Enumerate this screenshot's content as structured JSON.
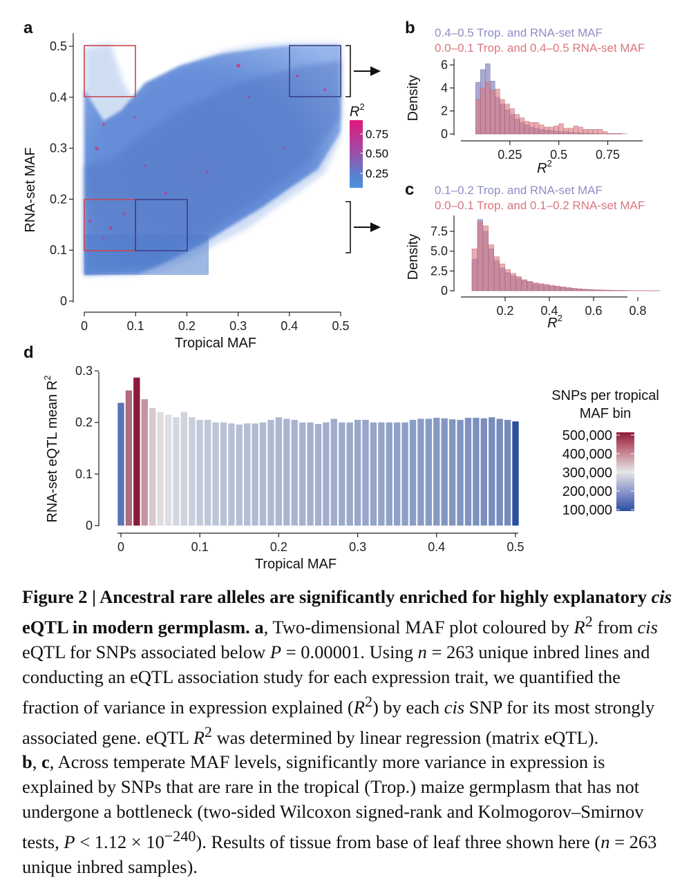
{
  "panel_a": {
    "letter": "a",
    "xlabel": "Tropical MAF",
    "ylabel": "RNA-set MAF",
    "xticks": [
      "0",
      "0.1",
      "0.2",
      "0.3",
      "0.4",
      "0.5"
    ],
    "yticks": [
      "0",
      "0.1",
      "0.2",
      "0.3",
      "0.4",
      "0.5"
    ],
    "colorbar_title": "R",
    "colorbar_title_sup": "2",
    "colorbar_ticks": [
      "0.75",
      "0.50",
      "0.25"
    ],
    "colorbar_colors": [
      "#e0197a",
      "#a24aa6",
      "#5b80cf",
      "#4a90dc"
    ],
    "box_colors": {
      "red": "#c9454f",
      "navy": "#3b3f86"
    }
  },
  "panel_b": {
    "letter": "b",
    "legend1": "0.4–0.5 Trop. and RNA-set MAF",
    "legend2": "0.0–0.1 Trop. and 0.4–0.5 RNA-set MAF",
    "ylabel": "Density",
    "xlabel": "R",
    "xlabel_sup": "2",
    "xticks": [
      "0.25",
      "0.5",
      "0.75"
    ],
    "yticks": [
      "0",
      "2",
      "4",
      "6"
    ],
    "colors": {
      "series1": "#8e8ec6",
      "series2": "#d9767d"
    }
  },
  "panel_c": {
    "letter": "c",
    "legend1": "0.1–0.2 Trop. and RNA-set MAF",
    "legend2": "0.0–0.1 Trop. and 0.1–0.2 RNA-set MAF",
    "ylabel": "Density",
    "xlabel": "R",
    "xlabel_sup": "2",
    "xticks": [
      "0.2",
      "0.4",
      "0.6",
      "0.8"
    ],
    "yticks": [
      "0",
      "2.5",
      "5.0",
      "7.5"
    ]
  },
  "panel_d": {
    "letter": "d",
    "ylabel": "RNA-set eQTL mean R",
    "ylabel_sup": "2",
    "xlabel": "Tropical MAF",
    "xticks": [
      "0",
      "0.1",
      "0.2",
      "0.3",
      "0.4",
      "0.5"
    ],
    "yticks": [
      "0",
      "0.1",
      "0.2",
      "0.3"
    ],
    "legend_title_1": "SNPs per tropical",
    "legend_title_2": "MAF bin",
    "legend_ticks": [
      "500,000",
      "400,000",
      "300,000",
      "200,000",
      "100,000"
    ]
  },
  "chart_data": [
    {
      "panel": "b",
      "type": "bar",
      "xlabel": "R2",
      "ylabel": "Density",
      "xlim": [
        0,
        0.9
      ],
      "ylim": [
        0,
        6.5
      ],
      "bin_width": 0.025,
      "x_start": 0.075,
      "series": [
        {
          "name": "0.4–0.5 Trop. and RNA-set MAF",
          "values": [
            4.5,
            5.6,
            6.1,
            4.6,
            3.2,
            2.6,
            2.1,
            1.7,
            1.3,
            1.0,
            0.8,
            0.6,
            0.5,
            0.4,
            0.35,
            0.3,
            0.25,
            0.2,
            0.2,
            0.15,
            0.12,
            0.1,
            0.08,
            0.05,
            0.05,
            0.03,
            0.02,
            0.02,
            0.01,
            0.01,
            0.01,
            0.0,
            0.0
          ]
        },
        {
          "name": "0.0–0.1 Trop. and 0.4–0.5 RNA-set MAF",
          "values": [
            3.0,
            4.0,
            4.5,
            3.8,
            3.9,
            3.0,
            2.6,
            2.2,
            1.7,
            1.4,
            1.1,
            1.0,
            1.0,
            0.8,
            0.6,
            0.6,
            0.7,
            0.9,
            0.5,
            0.5,
            0.7,
            0.6,
            0.4,
            0.4,
            0.4,
            0.4,
            0.2,
            0.05,
            0.05,
            0.05,
            0.0,
            0.0,
            0.0
          ]
        }
      ]
    },
    {
      "panel": "c",
      "type": "bar",
      "xlabel": "R2",
      "ylabel": "Density",
      "xlim": [
        0,
        0.9
      ],
      "ylim": [
        0,
        9.5
      ],
      "bin_width": 0.025,
      "x_start": 0.05,
      "series": [
        {
          "name": "0.1–0.2 Trop. and RNA-set MAF",
          "values": [
            4.0,
            9.0,
            7.5,
            5.3,
            3.8,
            2.9,
            2.3,
            1.9,
            1.6,
            1.3,
            1.1,
            0.9,
            0.8,
            0.7,
            0.6,
            0.5,
            0.4,
            0.35,
            0.3,
            0.25,
            0.2,
            0.15,
            0.12,
            0.1,
            0.08,
            0.06,
            0.05,
            0.04,
            0.03,
            0.02,
            0.02,
            0.01,
            0.01,
            0.01,
            0.0
          ]
        },
        {
          "name": "0.0–0.1 Trop. and 0.1–0.2 RNA-set MAF",
          "values": [
            5.3,
            8.7,
            8.2,
            5.8,
            4.3,
            3.4,
            2.7,
            2.2,
            1.8,
            1.4,
            1.2,
            1.0,
            0.9,
            0.8,
            0.7,
            0.6,
            0.5,
            0.4,
            0.3,
            0.25,
            0.2,
            0.15,
            0.12,
            0.1,
            0.08,
            0.06,
            0.05,
            0.04,
            0.03,
            0.02,
            0.02,
            0.01,
            0.01,
            0.01,
            0.0
          ]
        }
      ]
    },
    {
      "panel": "d",
      "type": "bar",
      "xlabel": "Tropical MAF",
      "ylabel": "RNA-set eQTL mean R2",
      "xlim": [
        0,
        0.5
      ],
      "ylim": [
        0,
        0.3
      ],
      "bin_width": 0.01,
      "x": [
        0,
        0.01,
        0.02,
        0.03,
        0.04,
        0.05,
        0.06,
        0.07,
        0.08,
        0.09,
        0.1,
        0.11,
        0.12,
        0.13,
        0.14,
        0.15,
        0.16,
        0.17,
        0.18,
        0.19,
        0.2,
        0.21,
        0.22,
        0.23,
        0.24,
        0.25,
        0.26,
        0.27,
        0.28,
        0.29,
        0.3,
        0.31,
        0.32,
        0.33,
        0.34,
        0.35,
        0.36,
        0.37,
        0.38,
        0.39,
        0.4,
        0.41,
        0.42,
        0.43,
        0.44,
        0.45,
        0.46,
        0.47,
        0.48,
        0.49,
        0.5
      ],
      "values": [
        0.238,
        0.262,
        0.287,
        0.245,
        0.228,
        0.22,
        0.215,
        0.21,
        0.22,
        0.21,
        0.205,
        0.205,
        0.2,
        0.2,
        0.198,
        0.196,
        0.198,
        0.198,
        0.2,
        0.205,
        0.21,
        0.207,
        0.205,
        0.2,
        0.2,
        0.197,
        0.2,
        0.207,
        0.2,
        0.2,
        0.205,
        0.205,
        0.2,
        0.2,
        0.2,
        0.2,
        0.2,
        0.205,
        0.207,
        0.207,
        0.209,
        0.208,
        0.206,
        0.205,
        0.209,
        0.209,
        0.208,
        0.21,
        0.207,
        0.205,
        0.202
      ],
      "snps_per_bin": [
        150000,
        420000,
        520000,
        380000,
        330000,
        310000,
        290000,
        280000,
        275000,
        270000,
        262000,
        258000,
        255000,
        252000,
        250000,
        248000,
        246000,
        244000,
        242000,
        240000,
        238000,
        236000,
        234000,
        232000,
        230000,
        228000,
        226000,
        224000,
        222000,
        220000,
        218000,
        216000,
        214000,
        212000,
        210000,
        208000,
        206000,
        204000,
        202000,
        200000,
        198000,
        196000,
        194000,
        192000,
        190000,
        188000,
        186000,
        184000,
        182000,
        180000,
        90000
      ],
      "colorscale": {
        "low": "#2a4fa0",
        "mid": "#e6e6e6",
        "high": "#8b1a3a",
        "min": 100000,
        "max": 500000
      }
    }
  ]
}
